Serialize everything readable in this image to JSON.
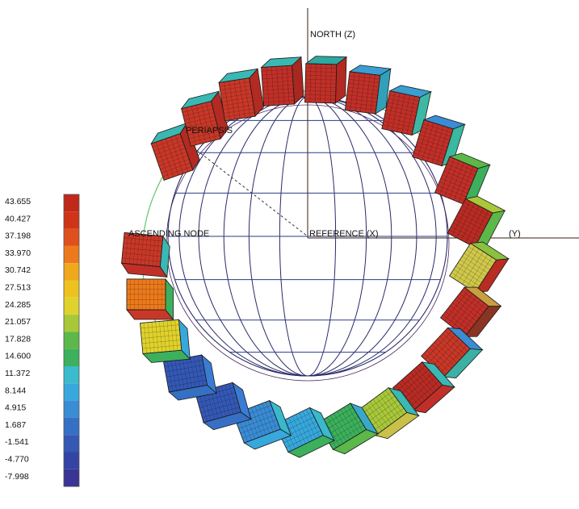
{
  "labels": {
    "north": "NORTH (Z)",
    "periapsis": "PERIAPSIS",
    "ascending_node": "ASCENDING NODE",
    "reference": "REFERENCE (X)",
    "y_axis": "(Y)"
  },
  "legend": {
    "values": [
      "43.655",
      "40.427",
      "37.198",
      "33.970",
      "30.742",
      "27.513",
      "24.285",
      "21.057",
      "17.828",
      "14.600",
      "11.372",
      "8.144",
      "4.915",
      "1.687",
      "-1.541",
      "-4.770",
      "-7.998"
    ],
    "colors": [
      "#c0281c",
      "#cf3418",
      "#e0501c",
      "#ec7a1c",
      "#f0a81c",
      "#eec21e",
      "#e0d22c",
      "#a8c83a",
      "#5cb848",
      "#3cb05c",
      "#3abccc",
      "#38a8dc",
      "#3a8cd4",
      "#3670c4",
      "#3458b4",
      "#3444a4",
      "#3a3494"
    ]
  },
  "satellites": [
    {
      "top": "#3ab8b4",
      "side": "#b22a22",
      "face": "#c83828"
    },
    {
      "top": "#3ab8b4",
      "side": "#b22a22",
      "face": "#c83828"
    },
    {
      "top": "#3ab8b4",
      "side": "#b22a22",
      "face": "#c83828"
    },
    {
      "top": "#3ab8b4",
      "side": "#a82820",
      "face": "#c03028"
    },
    {
      "top": "#2ea8a0",
      "side": "#b22a22",
      "face": "#c03028"
    },
    {
      "top": "#3a9ed0",
      "side": "#32a0b8",
      "face": "#c03028"
    },
    {
      "top": "#3a9ed0",
      "side": "#3cb8a4",
      "face": "#c03028"
    },
    {
      "top": "#3a8cd4",
      "side": "#3ab8a0",
      "face": "#c03028"
    },
    {
      "top": "#5cb848",
      "side": "#3cb05c",
      "face": "#c03028"
    },
    {
      "top": "#a8c83a",
      "side": "#5cb848",
      "face": "#b82c24"
    },
    {
      "top": "#8cc040",
      "side": "#b82c24",
      "face": "#d0c84a"
    },
    {
      "top": "#c8a040",
      "side": "#8a3424",
      "face": "#c03028"
    },
    {
      "top": "#3a8cd4",
      "side": "#3cb0a4",
      "face": "#c83828"
    },
    {
      "top": "#3ab8b4",
      "side": "#c03028",
      "face": "#b82c24"
    },
    {
      "top": "#3ab8b4",
      "side": "#c8c048",
      "face": "#a8c83a"
    },
    {
      "top": "#3aa8c8",
      "side": "#5cb848",
      "face": "#3cb05c"
    },
    {
      "top": "#3ab8cc",
      "side": "#3cb05c",
      "face": "#38a8dc"
    },
    {
      "top": "#3ab8cc",
      "side": "#38a8dc",
      "face": "#3a8cd4"
    },
    {
      "top": "#3a7cd4",
      "side": "#3670c4",
      "face": "#3458b4"
    },
    {
      "top": "#3a7cd4",
      "side": "#3670c4",
      "face": "#3458b4"
    },
    {
      "top": "#38a8dc",
      "side": "#3cb05c",
      "face": "#e0d22c"
    },
    {
      "top": "#3cb05c",
      "side": "#c83828",
      "face": "#ec7a1c"
    },
    {
      "top": "#3ab8b4",
      "side": "#c03028",
      "face": "#c83828"
    }
  ]
}
